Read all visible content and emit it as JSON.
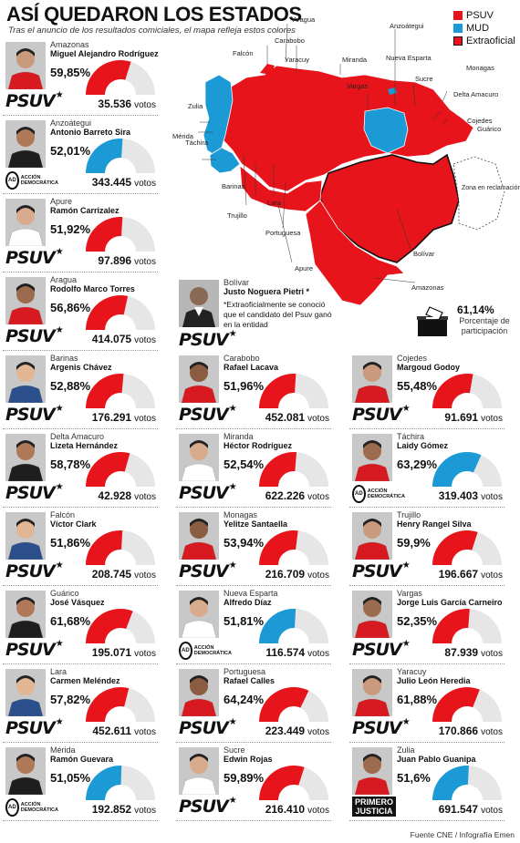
{
  "title": "ASÍ QUEDARON LOS ESTADOS",
  "subtitle": "Tras el anuncio de los resultados comiciales, el mapa refleja estos colores",
  "legend": [
    {
      "label": "PSUV",
      "color": "#e8141b"
    },
    {
      "label": "MUD",
      "color": "#1c9ad6"
    },
    {
      "label": "Extraoficial",
      "color": "#e8141b"
    }
  ],
  "colors": {
    "psuv": "#e8141b",
    "mud": "#1c9ad6",
    "gauge_bg": "#e6e6e6"
  },
  "map_labels": {
    "aragua": "Aragua",
    "carabobo": "Carabobo",
    "falcon": "Falcón",
    "yaracuy": "Yaracuy",
    "miranda": "Miranda",
    "anzoategui": "Anzoátegui",
    "nueva_esparta": "Nueva Esparta",
    "monagas": "Monagas",
    "zulia": "Zulia",
    "vargas": "Vargas",
    "sucre": "Sucre",
    "delta": "Delta Amacuro",
    "merida": "Mérida",
    "cojedes": "Cojedes",
    "guarico": "Guárico",
    "tachira": "Táchira",
    "barinas": "Barinas",
    "trujillo": "Trujillo",
    "lara": "Lara",
    "portuguesa": "Portuguesa",
    "apure": "Apure",
    "bolivar": "Bolívar",
    "amazonas": "Amazonas",
    "zona": "Zona en reclamación"
  },
  "party_labels": {
    "psuv": "PSUV",
    "ad": "ACCIÓN DEMOCRÁTICA",
    "pj_1": "PRIMERO",
    "pj_2": "JUSTICIA"
  },
  "votes_word": "votos",
  "cards": [
    {
      "state": "Amazonas",
      "name": "Miguel Alejandro Rodríguez",
      "pct_label": "59,85%",
      "pct": 59.85,
      "votes": "35.536",
      "party": "psuv"
    },
    {
      "state": "Anzoátegui",
      "name": "Antonio Barreto Sira",
      "pct_label": "52,01%",
      "pct": 52.01,
      "votes": "343.445",
      "party": "ad"
    },
    {
      "state": "Apure",
      "name": "Ramón Carrizalez",
      "pct_label": "51,92%",
      "pct": 51.92,
      "votes": "97.896",
      "party": "psuv"
    },
    {
      "state": "Aragua",
      "name": "Rodolfo Marco Torres",
      "pct_label": "56,86%",
      "pct": 56.86,
      "votes": "414.075",
      "party": "psuv"
    },
    {
      "state": "Barinas",
      "name": "Argenis Chávez",
      "pct_label": "52,88%",
      "pct": 52.88,
      "votes": "176.291",
      "party": "psuv"
    },
    {
      "state": "Carabobo",
      "name": "Rafael Lacava",
      "pct_label": "51,96%",
      "pct": 51.96,
      "votes": "452.081",
      "party": "psuv"
    },
    {
      "state": "Cojedes",
      "name": "Margoud Godoy",
      "pct_label": "55,48%",
      "pct": 55.48,
      "votes": "91.691",
      "party": "psuv"
    },
    {
      "state": "Delta Amacuro",
      "name": "Lizeta Hernández",
      "pct_label": "58,78%",
      "pct": 58.78,
      "votes": "42.928",
      "party": "psuv"
    },
    {
      "state": "Miranda",
      "name": "Héctor Rodríguez",
      "pct_label": "52,54%",
      "pct": 52.54,
      "votes": "622.226",
      "party": "psuv"
    },
    {
      "state": "Táchira",
      "name": "Laidy Gómez",
      "pct_label": "63,29%",
      "pct": 63.29,
      "votes": "319.403",
      "party": "ad"
    },
    {
      "state": "Falcón",
      "name": "Víctor Clark",
      "pct_label": "51,86%",
      "pct": 51.86,
      "votes": "208.745",
      "party": "psuv"
    },
    {
      "state": "Monagas",
      "name": "Yelitze Santaella",
      "pct_label": "53,94%",
      "pct": 53.94,
      "votes": "216.709",
      "party": "psuv"
    },
    {
      "state": "Trujillo",
      "name": "Henry Rangel Silva",
      "pct_label": "59,9%",
      "pct": 59.9,
      "votes": "196.667",
      "party": "psuv"
    },
    {
      "state": "Guárico",
      "name": "José Vásquez",
      "pct_label": "61,68%",
      "pct": 61.68,
      "votes": "195.071",
      "party": "psuv"
    },
    {
      "state": "Nueva Esparta",
      "name": "Alfredo Díaz",
      "pct_label": "51,81%",
      "pct": 51.81,
      "votes": "116.574",
      "party": "ad"
    },
    {
      "state": "Vargas",
      "name": "Jorge Luis García Carneiro",
      "pct_label": "52,35%",
      "pct": 52.35,
      "votes": "87.939",
      "party": "psuv"
    },
    {
      "state": "Lara",
      "name": "Carmen Meléndez",
      "pct_label": "57,82%",
      "pct": 57.82,
      "votes": "452.611",
      "party": "psuv"
    },
    {
      "state": "Portuguesa",
      "name": "Rafael Calles",
      "pct_label": "64,24%",
      "pct": 64.24,
      "votes": "223.449",
      "party": "psuv"
    },
    {
      "state": "Yaracuy",
      "name": "Julio León Heredia",
      "pct_label": "61,88%",
      "pct": 61.88,
      "votes": "170.866",
      "party": "psuv"
    },
    {
      "state": "Mérida",
      "name": "Ramón Guevara",
      "pct_label": "51,05%",
      "pct": 51.05,
      "votes": "192.852",
      "party": "ad"
    },
    {
      "state": "Sucre",
      "name": "Edwin Rojas",
      "pct_label": "59,89%",
      "pct": 59.89,
      "votes": "216.410",
      "party": "psuv"
    },
    {
      "state": "Zulia",
      "name": "Juan Pablo Guanipa",
      "pct_label": "51,6%",
      "pct": 51.6,
      "votes": "691.547",
      "party": "pj"
    }
  ],
  "bolivar": {
    "state": "Bolívar",
    "name": "Justo Noguera Pietri *",
    "note": "*Extraoficialmente se conoció que el candidato del Psuv ganó en la entidad"
  },
  "participation": {
    "pct_label": "61,14%",
    "label": "Porcentaje de participación",
    "value": 61.14
  },
  "footer": "Fuente CNE / Infografía Emen"
}
